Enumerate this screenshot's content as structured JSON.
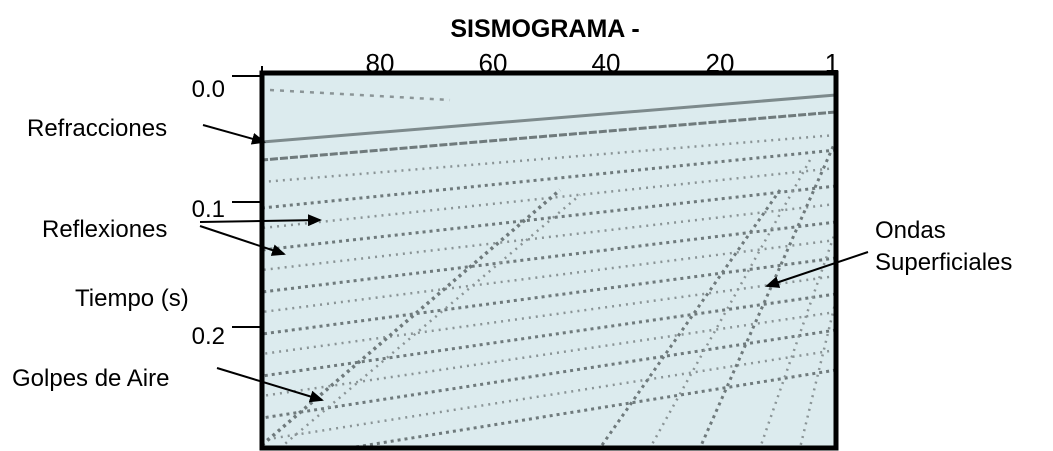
{
  "title": "SISMOGRAMA -",
  "x_labels": [
    "80",
    "60",
    "40",
    "20",
    "1"
  ],
  "y_labels": [
    "0.0",
    "0.1",
    "0.2"
  ],
  "y_axis_label": "Tiempo (s)",
  "annotations": {
    "refracciones": "Refracciones",
    "reflexiones": "Reflexiones",
    "golpes_de_aire": "Golpes de Aire",
    "ondas_superficiales": [
      "Ondas",
      "Superficiales"
    ]
  }
}
